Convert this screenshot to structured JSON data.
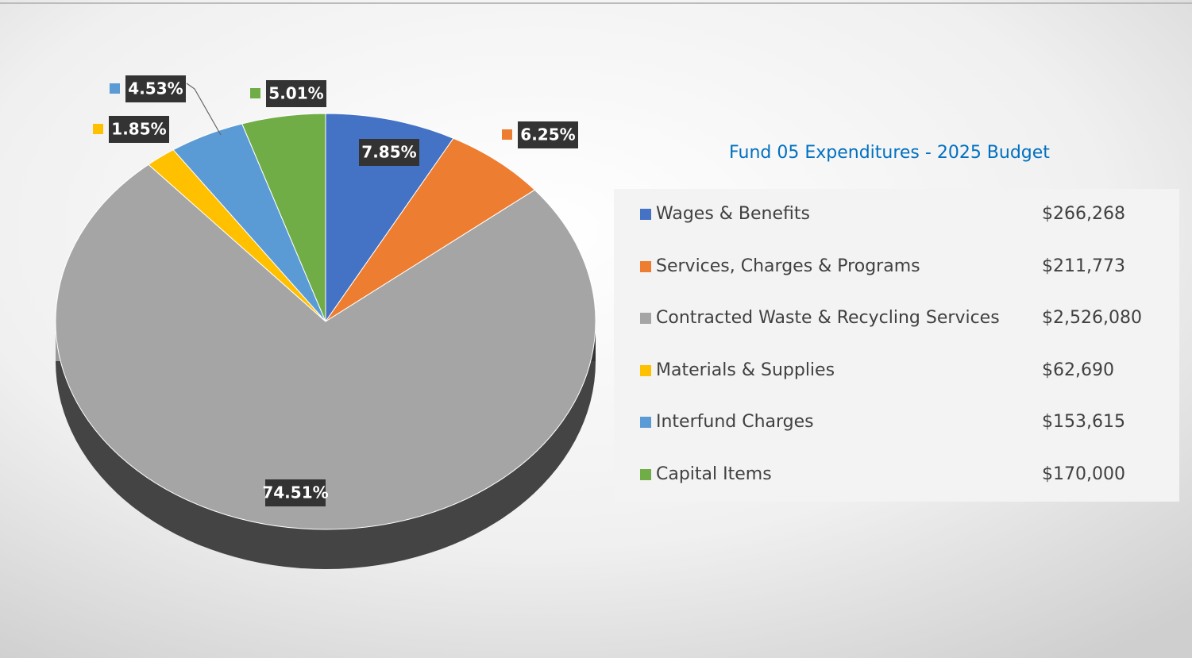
{
  "chart_data": {
    "type": "pie",
    "title": "Fund 05 Expenditures - 2025 Budget",
    "categories": [
      "Wages & Benefits",
      "Services, Charges & Programs",
      "Contracted Waste & Recycling Services",
      "Materials & Supplies",
      "Interfund Charges",
      "Capital Items"
    ],
    "values": [
      7.85,
      6.25,
      74.51,
      1.85,
      4.53,
      5.01
    ],
    "value_labels": [
      "7.85%",
      "6.25%",
      "74.51%",
      "1.85%",
      "4.53%",
      "5.01%"
    ],
    "amounts": [
      "$266,268",
      "$211,773",
      "$2,526,080",
      "$62,690",
      "$153,615",
      "$170,000"
    ],
    "colors": [
      "#4472c4",
      "#ed7d31",
      "#a5a5a5",
      "#ffc000",
      "#5b9bd5",
      "#70ad47"
    ]
  }
}
